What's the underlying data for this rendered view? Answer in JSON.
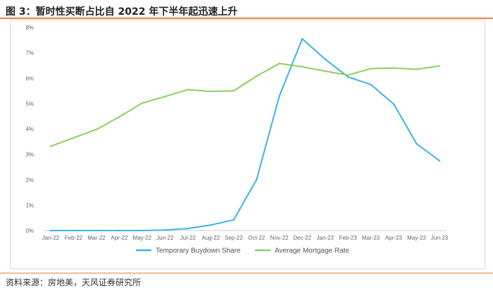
{
  "header": {
    "title": "图 3：暂时性买断占比自 2022 年下半年起迅速上升"
  },
  "footer": {
    "source": "资料来源：房地美，天风证券研究所"
  },
  "colors": {
    "accent": "#e8823a",
    "buydown": "#3eb3e6",
    "mortgage": "#8dcf5f"
  },
  "chart_data": {
    "type": "line",
    "categories": [
      "Jan-22",
      "Feb-22",
      "Mar-22",
      "Apr-22",
      "May-22",
      "Jun-22",
      "Jul-22",
      "Aug-22",
      "Sep-22",
      "Oct-22",
      "Nov-22",
      "Dec-22",
      "Jan-23",
      "Feb-23",
      "Mar-23",
      "Apr-23",
      "May-23",
      "Jun-23"
    ],
    "y_ticks": [
      "0%",
      "1%",
      "2%",
      "3%",
      "4%",
      "5%",
      "6%",
      "7%",
      "8%"
    ],
    "ylim": [
      0,
      8
    ],
    "grid": false,
    "legend_position": "bottom",
    "series": [
      {
        "name": "Temporary Buydown Share",
        "color": "#3eb3e6",
        "values": [
          0,
          0,
          0,
          0,
          0,
          0.02,
          0.08,
          0.22,
          0.42,
          2.0,
          5.3,
          7.55,
          6.75,
          6.05,
          5.75,
          4.98,
          3.42,
          2.75
        ]
      },
      {
        "name": "Average Mortgage Rate",
        "color": "#8dcf5f",
        "values": [
          3.32,
          3.65,
          3.98,
          4.48,
          5.02,
          5.28,
          5.55,
          5.48,
          5.5,
          6.08,
          6.58,
          6.45,
          6.28,
          6.12,
          6.38,
          6.4,
          6.35,
          6.48
        ]
      }
    ]
  }
}
